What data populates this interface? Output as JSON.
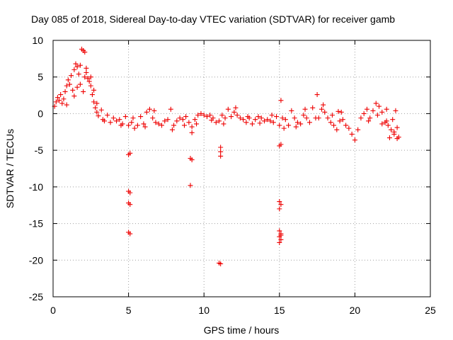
{
  "chart_data": {
    "type": "scatter",
    "title": "Day 085 of 2018, Sidereal Day-to-day VTEC variation (SDTVAR) for receiver gamb",
    "xlabel": "GPS time / hours",
    "ylabel": "SDTVAR / TECUs",
    "xlim": [
      0,
      25
    ],
    "ylim": [
      -25,
      10
    ],
    "xticks": [
      "0",
      "5",
      "10",
      "15",
      "20",
      "25"
    ],
    "yticks": [
      "10",
      "5",
      "0",
      "-5",
      "-10",
      "-15",
      "-20",
      "-25"
    ],
    "grid": true,
    "marker": "plus",
    "color": "#ee0000",
    "series": [
      {
        "name": "SDTVAR",
        "points": [
          [
            0.1,
            1.0
          ],
          [
            0.2,
            1.6
          ],
          [
            0.3,
            2.2
          ],
          [
            0.4,
            1.8
          ],
          [
            0.5,
            2.6
          ],
          [
            0.6,
            1.4
          ],
          [
            0.7,
            2.0
          ],
          [
            0.8,
            3.0
          ],
          [
            0.9,
            3.8
          ],
          [
            1.0,
            4.6
          ],
          [
            1.1,
            4.0
          ],
          [
            1.2,
            5.2
          ],
          [
            1.3,
            3.2
          ],
          [
            1.4,
            6.0
          ],
          [
            1.5,
            6.8
          ],
          [
            1.6,
            6.4
          ],
          [
            1.7,
            5.4
          ],
          [
            1.8,
            6.6
          ],
          [
            1.9,
            8.8
          ],
          [
            2.0,
            8.6
          ],
          [
            2.1,
            8.4
          ],
          [
            2.2,
            5.6
          ],
          [
            2.3,
            4.8
          ],
          [
            2.4,
            4.4
          ],
          [
            2.5,
            3.8
          ],
          [
            2.6,
            2.6
          ],
          [
            2.7,
            1.6
          ],
          [
            2.8,
            0.8
          ],
          [
            2.9,
            0.2
          ],
          [
            3.0,
            -0.3
          ],
          [
            1.6,
            3.6
          ],
          [
            1.8,
            4.0
          ],
          [
            2.0,
            3.0
          ],
          [
            2.2,
            6.2
          ],
          [
            1.4,
            2.4
          ],
          [
            0.9,
            1.2
          ],
          [
            2.5,
            5.0
          ],
          [
            2.7,
            3.2
          ],
          [
            2.9,
            1.4
          ],
          [
            2.1,
            5.0
          ],
          [
            3.2,
            0.5
          ],
          [
            3.4,
            -1.0
          ],
          [
            3.6,
            -0.2
          ],
          [
            3.8,
            -1.2
          ],
          [
            4.0,
            -0.6
          ],
          [
            4.2,
            -1.0
          ],
          [
            4.4,
            -0.8
          ],
          [
            4.6,
            -1.4
          ],
          [
            4.8,
            -0.4
          ],
          [
            5.0,
            -1.6
          ],
          [
            5.2,
            -1.2
          ],
          [
            5.4,
            -2.0
          ],
          [
            5.6,
            -1.6
          ],
          [
            5.8,
            -0.4
          ],
          [
            6.0,
            -1.4
          ],
          [
            6.2,
            0.2
          ],
          [
            6.4,
            0.6
          ],
          [
            6.6,
            -0.6
          ],
          [
            6.8,
            -1.2
          ],
          [
            7.0,
            -1.4
          ],
          [
            7.2,
            -1.6
          ],
          [
            7.4,
            -1.0
          ],
          [
            7.6,
            -0.8
          ],
          [
            7.8,
            0.6
          ],
          [
            8.0,
            -1.6
          ],
          [
            8.2,
            -1.0
          ],
          [
            8.4,
            -0.6
          ],
          [
            8.6,
            -0.8
          ],
          [
            8.8,
            -0.4
          ],
          [
            9.0,
            -1.2
          ],
          [
            9.2,
            -1.8
          ],
          [
            9.4,
            -0.8
          ],
          [
            9.6,
            -0.2
          ],
          [
            9.8,
            0.0
          ],
          [
            10.0,
            -0.2
          ],
          [
            10.2,
            -0.4
          ],
          [
            10.4,
            -0.2
          ],
          [
            10.6,
            -0.6
          ],
          [
            10.8,
            -1.2
          ],
          [
            11.0,
            -1.0
          ],
          [
            11.2,
            -0.2
          ],
          [
            11.4,
            -0.6
          ],
          [
            11.6,
            0.6
          ],
          [
            11.8,
            -0.4
          ],
          [
            12.0,
            0.2
          ],
          [
            12.2,
            -0.2
          ],
          [
            12.4,
            -0.6
          ],
          [
            12.6,
            -0.8
          ],
          [
            12.8,
            -1.2
          ],
          [
            13.0,
            -0.6
          ],
          [
            13.2,
            -1.4
          ],
          [
            13.4,
            -0.8
          ],
          [
            13.6,
            -0.4
          ],
          [
            13.8,
            -0.6
          ],
          [
            14.0,
            -1.0
          ],
          [
            14.2,
            -0.8
          ],
          [
            14.4,
            -1.0
          ],
          [
            14.6,
            -1.2
          ],
          [
            14.8,
            -0.4
          ],
          [
            15.0,
            -1.6
          ],
          [
            15.2,
            -0.6
          ],
          [
            15.4,
            -0.8
          ],
          [
            15.6,
            -1.6
          ],
          [
            15.8,
            0.4
          ],
          [
            16.0,
            -0.6
          ],
          [
            16.2,
            -1.2
          ],
          [
            16.4,
            -1.4
          ],
          [
            16.6,
            -0.2
          ],
          [
            16.8,
            -0.6
          ],
          [
            17.0,
            -1.2
          ],
          [
            17.2,
            0.8
          ],
          [
            17.4,
            -0.6
          ],
          [
            17.6,
            -0.6
          ],
          [
            17.8,
            0.6
          ],
          [
            18.0,
            0.2
          ],
          [
            18.2,
            -0.6
          ],
          [
            18.4,
            -1.2
          ],
          [
            18.6,
            -1.6
          ],
          [
            18.8,
            -2.2
          ],
          [
            19.0,
            -1.0
          ],
          [
            19.2,
            -0.8
          ],
          [
            19.4,
            -1.6
          ],
          [
            19.6,
            -2.0
          ],
          [
            19.8,
            -2.8
          ],
          [
            20.0,
            -3.6
          ],
          [
            20.2,
            -2.2
          ],
          [
            20.4,
            -0.6
          ],
          [
            20.6,
            0.0
          ],
          [
            20.8,
            0.6
          ],
          [
            21.0,
            -0.6
          ],
          [
            21.2,
            0.4
          ],
          [
            21.4,
            1.4
          ],
          [
            21.6,
            1.0
          ],
          [
            21.8,
            0.2
          ],
          [
            22.0,
            -1.2
          ],
          [
            22.2,
            -1.6
          ],
          [
            22.4,
            -2.2
          ],
          [
            22.6,
            -2.8
          ],
          [
            22.8,
            -3.4
          ],
          [
            22.9,
            -3.2
          ],
          [
            3.3,
            -0.8
          ],
          [
            4.5,
            -1.6
          ],
          [
            5.3,
            -0.6
          ],
          [
            6.1,
            -1.8
          ],
          [
            6.7,
            0.4
          ],
          [
            7.9,
            -2.2
          ],
          [
            8.7,
            -1.6
          ],
          [
            9.5,
            -1.4
          ],
          [
            10.5,
            -0.9
          ],
          [
            11.3,
            -1.4
          ],
          [
            12.1,
            0.8
          ],
          [
            12.9,
            -0.4
          ],
          [
            13.7,
            -1.3
          ],
          [
            14.5,
            -0.2
          ],
          [
            15.3,
            -2.0
          ],
          [
            16.1,
            -1.8
          ],
          [
            16.7,
            0.6
          ],
          [
            17.9,
            1.2
          ],
          [
            18.5,
            -0.2
          ],
          [
            19.1,
            0.2
          ],
          [
            20.9,
            -1.0
          ],
          [
            21.5,
            -0.2
          ],
          [
            22.1,
            0.6
          ],
          [
            22.5,
            -0.8
          ],
          [
            17.5,
            2.6
          ],
          [
            15.1,
            1.8
          ],
          [
            18.9,
            0.3
          ],
          [
            22.1,
            -1.0
          ],
          [
            22.3,
            -3.3
          ],
          [
            22.6,
            -2.5
          ],
          [
            22.8,
            -1.9
          ],
          [
            22.7,
            0.4
          ],
          [
            9.2,
            -2.6
          ],
          [
            21.8,
            -1.4
          ],
          [
            5.0,
            -5.6
          ],
          [
            5.1,
            -5.4
          ],
          [
            5.0,
            -10.6
          ],
          [
            5.1,
            -10.8
          ],
          [
            5.0,
            -12.2
          ],
          [
            5.1,
            -12.4
          ],
          [
            5.0,
            -16.2
          ],
          [
            5.1,
            -16.4
          ],
          [
            9.1,
            -6.1
          ],
          [
            9.2,
            -6.3
          ],
          [
            9.1,
            -9.8
          ],
          [
            11.1,
            -4.6
          ],
          [
            11.1,
            -5.2
          ],
          [
            11.1,
            -5.8
          ],
          [
            11.0,
            -20.4
          ],
          [
            11.1,
            -20.5
          ],
          [
            15.0,
            -4.4
          ],
          [
            15.1,
            -4.2
          ],
          [
            15.0,
            -12.0
          ],
          [
            15.1,
            -12.4
          ],
          [
            15.0,
            -16.0
          ],
          [
            15.1,
            -16.4
          ],
          [
            15.0,
            -16.8
          ],
          [
            15.1,
            -17.2
          ],
          [
            15.0,
            -17.6
          ],
          [
            15.1,
            -16.6
          ],
          [
            15.0,
            -13.0
          ]
        ]
      }
    ]
  }
}
